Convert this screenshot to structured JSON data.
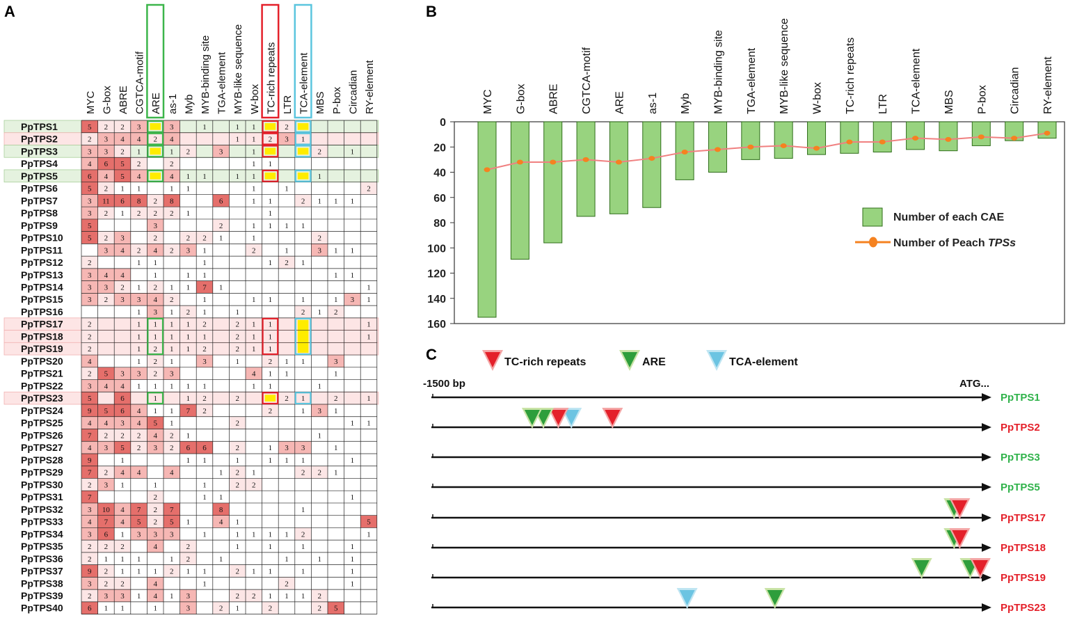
{
  "colors": {
    "cell_light": "#fce6e6",
    "cell_mid": "#f6b7b4",
    "cell_dark": "#e56f6b",
    "highlight_yellow": "#ffec00",
    "bar_green": "#98d37f",
    "bar_border": "#2f6d1a",
    "line_red": "#f08080",
    "dot_orange": "#f58220",
    "box_green": "#3cb54a",
    "box_red": "#e4202a",
    "box_blue": "#5bc5de",
    "label_green": "#2fb24a",
    "label_red": "#e4202a",
    "row_green": "#e5f2df",
    "row_pink": "#fde5e5"
  },
  "panel_a": {
    "label": "A",
    "columns": [
      "MYC",
      "G-box",
      "ABRE",
      "CGTCA-motif",
      "ARE",
      "as-1",
      "Myb",
      "MYB-binding site",
      "TGA-element",
      "MYB-like sequence",
      "W-box",
      "TC-rich repeats",
      "LTR",
      "TCA-element",
      "MBS",
      "P-box",
      "Circadian",
      "RY-element"
    ],
    "highlight_columns": [
      {
        "index": 4,
        "color": "green"
      },
      {
        "index": 11,
        "color": "red"
      },
      {
        "index": 13,
        "color": "blue"
      }
    ],
    "rows": [
      {
        "name": "PpTPS1",
        "band": "green",
        "cells": [
          "5",
          "2",
          "2",
          "3",
          "Y",
          "3",
          "",
          "1",
          "",
          "1",
          "1",
          "Y",
          "2",
          "Y",
          "",
          "",
          "",
          ""
        ]
      },
      {
        "name": "PpTPS2",
        "band": "pink",
        "cells": [
          "2",
          "3",
          "4",
          "4",
          "2",
          "4",
          "",
          "",
          "",
          "1",
          "1",
          "2",
          "3",
          "1",
          "",
          "",
          "",
          ""
        ]
      },
      {
        "name": "PpTPS3",
        "band": "green",
        "cells": [
          "3",
          "3",
          "2",
          "1",
          "Y",
          "1",
          "2",
          "",
          "3",
          "",
          "1",
          "Y",
          "",
          "Y",
          "2",
          "",
          "1",
          ""
        ]
      },
      {
        "name": "PpTPS4",
        "band": "",
        "cells": [
          "4",
          "6",
          "5",
          "2",
          "",
          "2",
          "",
          "",
          "",
          "",
          "1",
          "1",
          "",
          "",
          "",
          "",
          "",
          ""
        ]
      },
      {
        "name": "PpTPS5",
        "band": "green",
        "cells": [
          "6",
          "4",
          "5",
          "4",
          "Y",
          "4",
          "1",
          "1",
          "",
          "1",
          "1",
          "Y",
          "",
          "Y",
          "1",
          "",
          "",
          ""
        ]
      },
      {
        "name": "PpTPS6",
        "band": "",
        "cells": [
          "5",
          "2",
          "1",
          "1",
          "",
          "1",
          "1",
          "",
          "",
          "",
          "1",
          "",
          "1",
          "",
          "",
          "",
          "",
          "2"
        ]
      },
      {
        "name": "PpTPS7",
        "band": "",
        "cells": [
          "3",
          "11",
          "6",
          "8",
          "2",
          "8",
          "",
          "",
          "6",
          "",
          "1",
          "1",
          "",
          "2",
          "1",
          "1",
          "1",
          ""
        ]
      },
      {
        "name": "PpTPS8",
        "band": "",
        "cells": [
          "3",
          "2",
          "1",
          "2",
          "2",
          "2",
          "1",
          "",
          "",
          "",
          "",
          "1",
          "",
          "",
          "",
          "",
          "",
          ""
        ]
      },
      {
        "name": "PpTPS9",
        "band": "",
        "cells": [
          "5",
          "",
          "",
          "",
          "3",
          "",
          "",
          "",
          "2",
          "",
          "1",
          "1",
          "1",
          "1",
          "",
          "",
          "",
          ""
        ]
      },
      {
        "name": "PpTPS10",
        "band": "",
        "cells": [
          "5",
          "2",
          "3",
          "",
          "2",
          "",
          "2",
          "2",
          "1",
          "",
          "1",
          "",
          "",
          "",
          "2",
          "",
          "",
          ""
        ]
      },
      {
        "name": "PpTPS11",
        "band": "",
        "cells": [
          "",
          "3",
          "4",
          "2",
          "4",
          "2",
          "3",
          "1",
          "",
          "",
          "2",
          "",
          "1",
          "",
          "3",
          "1",
          "1",
          ""
        ]
      },
      {
        "name": "PpTPS12",
        "band": "",
        "cells": [
          "2",
          "",
          "",
          "1",
          "1",
          "",
          "",
          "1",
          "",
          "",
          "",
          "1",
          "2",
          "1",
          "",
          "",
          "",
          ""
        ]
      },
      {
        "name": "PpTPS13",
        "band": "",
        "cells": [
          "3",
          "4",
          "4",
          "",
          "1",
          "",
          "1",
          "1",
          "",
          "",
          "",
          "",
          "",
          "",
          "",
          "1",
          "1",
          ""
        ]
      },
      {
        "name": "PpTPS14",
        "band": "",
        "cells": [
          "3",
          "3",
          "2",
          "1",
          "2",
          "1",
          "1",
          "7",
          "1",
          "",
          "",
          "",
          "",
          "",
          "",
          "",
          "",
          "1"
        ]
      },
      {
        "name": "PpTPS15",
        "band": "",
        "cells": [
          "3",
          "2",
          "3",
          "3",
          "4",
          "2",
          "",
          "1",
          "",
          "",
          "1",
          "1",
          "",
          "1",
          "",
          "1",
          "3",
          "1"
        ]
      },
      {
        "name": "PpTPS16",
        "band": "",
        "cells": [
          "",
          "",
          "",
          "1",
          "3",
          "1",
          "2",
          "1",
          "",
          "1",
          "",
          "",
          "",
          "2",
          "1",
          "2",
          "",
          ""
        ]
      },
      {
        "name": "PpTPS17",
        "band": "pink",
        "cells": [
          "2",
          "",
          "",
          "1",
          "1",
          "1",
          "1",
          "2",
          "",
          "2",
          "1",
          "1",
          "",
          "Y",
          "",
          "",
          "",
          "1"
        ]
      },
      {
        "name": "PpTPS18",
        "band": "pink",
        "cells": [
          "2",
          "",
          "",
          "1",
          "1",
          "1",
          "1",
          "1",
          "",
          "2",
          "1",
          "1",
          "",
          "Y",
          "",
          "",
          "",
          "1"
        ]
      },
      {
        "name": "PpTPS19",
        "band": "pink",
        "cells": [
          "2",
          "",
          "",
          "1",
          "2",
          "1",
          "1",
          "2",
          "",
          "2",
          "1",
          "1",
          "",
          "Y",
          "",
          "",
          "",
          ""
        ]
      },
      {
        "name": "PpTPS20",
        "band": "",
        "cells": [
          "4",
          "",
          "",
          "1",
          "2",
          "1",
          "",
          "3",
          "",
          "1",
          "",
          "2",
          "1",
          "1",
          "",
          "3",
          "",
          ""
        ]
      },
      {
        "name": "PpTPS21",
        "band": "",
        "cells": [
          "2",
          "5",
          "3",
          "3",
          "2",
          "3",
          "",
          "",
          "",
          "",
          "4",
          "1",
          "1",
          "",
          "",
          "1",
          "",
          ""
        ]
      },
      {
        "name": "PpTPS22",
        "band": "",
        "cells": [
          "3",
          "4",
          "4",
          "1",
          "1",
          "1",
          "1",
          "1",
          "",
          "",
          "1",
          "1",
          "",
          "",
          "1",
          "",
          "",
          ""
        ]
      },
      {
        "name": "PpTPS23",
        "band": "pink",
        "cells": [
          "5",
          "",
          "6",
          "",
          "1",
          "",
          "1",
          "2",
          "",
          "2",
          "",
          "Y",
          "2",
          "1",
          "",
          "2",
          "",
          "1"
        ]
      },
      {
        "name": "PpTPS24",
        "band": "",
        "cells": [
          "9",
          "5",
          "6",
          "4",
          "1",
          "1",
          "7",
          "2",
          "",
          "",
          "",
          "2",
          "",
          "1",
          "3",
          "1",
          "",
          ""
        ]
      },
      {
        "name": "PpTPS25",
        "band": "",
        "cells": [
          "4",
          "4",
          "3",
          "4",
          "5",
          "1",
          "",
          "",
          "",
          "2",
          "",
          "",
          "",
          "",
          "",
          "",
          "1",
          "1"
        ]
      },
      {
        "name": "PpTPS26",
        "band": "",
        "cells": [
          "7",
          "2",
          "2",
          "2",
          "4",
          "2",
          "1",
          "",
          "",
          "",
          "",
          "",
          "",
          "",
          "1",
          "",
          "",
          ""
        ]
      },
      {
        "name": "PpTPS27",
        "band": "",
        "cells": [
          "4",
          "3",
          "5",
          "2",
          "3",
          "2",
          "6",
          "6",
          "",
          "2",
          "",
          "1",
          "3",
          "3",
          "",
          "1",
          "",
          ""
        ]
      },
      {
        "name": "PpTPS28",
        "band": "",
        "cells": [
          "9",
          "",
          "1",
          "",
          "",
          "",
          "1",
          "1",
          "",
          "1",
          "",
          "1",
          "1",
          "1",
          "",
          "",
          "1",
          ""
        ]
      },
      {
        "name": "PpTPS29",
        "band": "",
        "cells": [
          "7",
          "2",
          "4",
          "4",
          "",
          "4",
          "",
          "",
          "1",
          "2",
          "1",
          "",
          "",
          "2",
          "2",
          "1",
          "",
          ""
        ]
      },
      {
        "name": "PpTPS30",
        "band": "",
        "cells": [
          "2",
          "3",
          "1",
          "",
          "1",
          "",
          "",
          "1",
          "",
          "2",
          "2",
          "",
          "",
          "",
          "",
          "",
          "",
          ""
        ]
      },
      {
        "name": "PpTPS31",
        "band": "",
        "cells": [
          "7",
          "",
          "",
          "",
          "2",
          "",
          "",
          "1",
          "1",
          "",
          "",
          "",
          "",
          "",
          "",
          "",
          "1",
          ""
        ]
      },
      {
        "name": "PpTPS32",
        "band": "",
        "cells": [
          "3",
          "10",
          "4",
          "7",
          "2",
          "7",
          "",
          "",
          "8",
          "",
          "",
          "",
          "",
          "1",
          "",
          "",
          "",
          ""
        ]
      },
      {
        "name": "PpTPS33",
        "band": "",
        "cells": [
          "4",
          "7",
          "4",
          "5",
          "2",
          "5",
          "1",
          "",
          "4",
          "1",
          "",
          "",
          "",
          "",
          "",
          "",
          "",
          "5"
        ]
      },
      {
        "name": "PpTPS34",
        "band": "",
        "cells": [
          "3",
          "6",
          "1",
          "3",
          "3",
          "3",
          "",
          "1",
          "",
          "1",
          "1",
          "1",
          "1",
          "2",
          "",
          "",
          "",
          "1"
        ]
      },
      {
        "name": "PpTPS35",
        "band": "",
        "cells": [
          "2",
          "2",
          "2",
          "",
          "4",
          "",
          "2",
          "",
          "",
          "1",
          "",
          "1",
          "",
          "1",
          "",
          "",
          "1",
          ""
        ]
      },
      {
        "name": "PpTPS36",
        "band": "",
        "cells": [
          "2",
          "1",
          "1",
          "1",
          "",
          "1",
          "2",
          "",
          "1",
          "",
          "",
          "",
          "1",
          "",
          "1",
          "",
          "1",
          ""
        ]
      },
      {
        "name": "PpTPS37",
        "band": "",
        "cells": [
          "9",
          "2",
          "1",
          "1",
          "1",
          "2",
          "1",
          "1",
          "",
          "2",
          "1",
          "1",
          "",
          "1",
          "",
          "",
          "1",
          ""
        ]
      },
      {
        "name": "PpTPS38",
        "band": "",
        "cells": [
          "3",
          "2",
          "2",
          "",
          "4",
          "",
          "",
          "1",
          "",
          "",
          "",
          "",
          "2",
          "",
          "",
          "",
          "1",
          ""
        ]
      },
      {
        "name": "PpTPS39",
        "band": "",
        "cells": [
          "2",
          "3",
          "3",
          "1",
          "4",
          "1",
          "3",
          "",
          "",
          "2",
          "2",
          "1",
          "1",
          "1",
          "2",
          "",
          "",
          ""
        ]
      },
      {
        "name": "PpTPS40",
        "band": "",
        "cells": [
          "6",
          "1",
          "1",
          "",
          "1",
          "",
          "3",
          "",
          "2",
          "1",
          "",
          "2",
          "",
          "",
          "2",
          "5",
          "",
          ""
        ]
      }
    ]
  },
  "chart_data": {
    "type": "bar",
    "label": "B",
    "categories": [
      "MYC",
      "G-box",
      "ABRE",
      "CGTCA-motif",
      "ARE",
      "as-1",
      "Myb",
      "MYB-binding site",
      "TGA-element",
      "MYB-like sequence",
      "W-box",
      "TC-rich repeats",
      "LTR",
      "TCA-element",
      "MBS",
      "P-box",
      "Circadian",
      "RY-element"
    ],
    "series": [
      {
        "name": "Number of each CAE",
        "type": "bar",
        "values": [
          155,
          109,
          96,
          75,
          73,
          68,
          46,
          40,
          30,
          29,
          26,
          25,
          24,
          22,
          23,
          19,
          15,
          13
        ]
      },
      {
        "name": "Number of Peach TPSs",
        "type": "line",
        "values": [
          38,
          32,
          32,
          30,
          32,
          29,
          24,
          22,
          20,
          19,
          21,
          16,
          16,
          13,
          14,
          12,
          13,
          9
        ]
      }
    ],
    "ylim": [
      0,
      160
    ],
    "yticks": [
      0,
      20,
      40,
      60,
      80,
      100,
      120,
      140,
      160
    ],
    "y_inverted": true,
    "legend": {
      "bar": "Number of each CAE",
      "line_prefix": "Number of Peach ",
      "line_italic": "TPSs"
    },
    "legend_position": "middle-right"
  },
  "panel_c": {
    "label": "C",
    "legend": [
      {
        "name": "TC-rich repeats",
        "color": "red"
      },
      {
        "name": "ARE",
        "color": "green"
      },
      {
        "name": "TCA-element",
        "color": "blue"
      }
    ],
    "start_label": "-1500 bp",
    "end_label": "ATG...",
    "promoter_length_bp": 1500,
    "tracks": [
      {
        "gene": "PpTPS1",
        "color": "green",
        "marks": []
      },
      {
        "gene": "PpTPS2",
        "color": "red",
        "marks": [
          {
            "type": "red",
            "pos_bp": 1015
          },
          {
            "type": "blue",
            "pos_bp": 1125
          },
          {
            "type": "red",
            "pos_bp": 1160
          },
          {
            "type": "green",
            "pos_bp": 1200
          },
          {
            "type": "green",
            "pos_bp": 1230
          }
        ]
      },
      {
        "gene": "PpTPS3",
        "color": "green",
        "marks": []
      },
      {
        "gene": "PpTPS5",
        "color": "green",
        "marks": []
      },
      {
        "gene": "PpTPS17",
        "color": "red",
        "marks": [
          {
            "type": "green",
            "pos_bp": 100
          },
          {
            "type": "red",
            "pos_bp": 85
          }
        ]
      },
      {
        "gene": "PpTPS18",
        "color": "red",
        "marks": [
          {
            "type": "green",
            "pos_bp": 100
          },
          {
            "type": "red",
            "pos_bp": 85
          }
        ]
      },
      {
        "gene": "PpTPS19",
        "color": "red",
        "marks": [
          {
            "type": "green",
            "pos_bp": 57
          },
          {
            "type": "green",
            "pos_bp": 187
          },
          {
            "type": "red",
            "pos_bp": 30
          }
        ]
      },
      {
        "gene": "PpTPS23",
        "color": "red",
        "marks": [
          {
            "type": "green",
            "pos_bp": 580
          },
          {
            "type": "blue",
            "pos_bp": 815
          }
        ]
      }
    ]
  }
}
